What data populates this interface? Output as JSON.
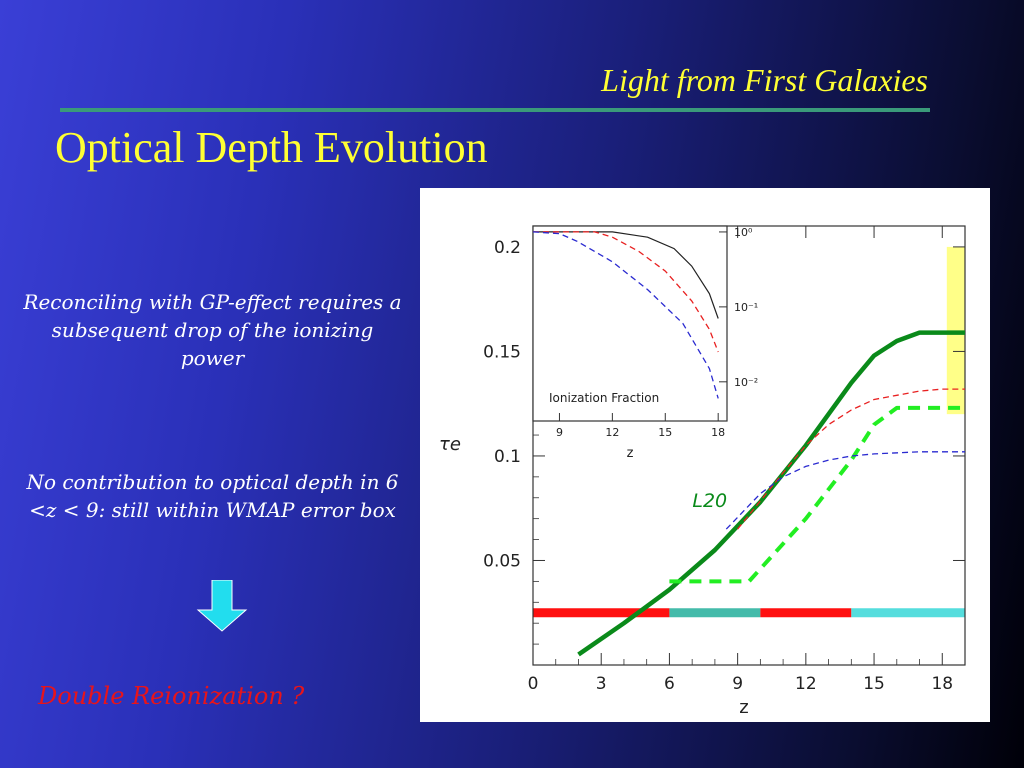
{
  "slide": {
    "header": "Light from First Galaxies",
    "title": "Optical Depth Evolution",
    "note1": "Reconciling with  GP-effect requires a subsequent drop of the ionizing power",
    "note2": "No contribution to  optical depth  in  6 <z < 9: still  within WMAP  error box",
    "conclusion": "Double Reionization ?",
    "colors": {
      "title": "#ffff33",
      "conclusion": "#e8141a",
      "arrow": "#22ddee"
    }
  },
  "chart_data": [
    {
      "type": "line",
      "xlabel": "z",
      "ylabel": "τe",
      "xlim": [
        0,
        19
      ],
      "ylim": [
        0.0,
        0.21
      ],
      "x_ticks": [
        0,
        3,
        6,
        9,
        12,
        15,
        18
      ],
      "y_ticks": [
        0.05,
        0.1,
        0.15,
        0.2
      ],
      "y_tick_labels": [
        "0.05",
        "0.1",
        "0.15",
        "0.2"
      ],
      "annotation": "L20",
      "series": [
        {
          "color": "#0a8a1a",
          "style": "solid-thick",
          "points": [
            [
              2,
              0.005
            ],
            [
              4,
              0.02
            ],
            [
              6,
              0.036
            ],
            [
              8,
              0.055
            ],
            [
              10,
              0.078
            ],
            [
              12,
              0.105
            ],
            [
              14,
              0.135
            ],
            [
              15,
              0.148
            ],
            [
              16,
              0.155
            ],
            [
              17,
              0.159
            ],
            [
              19,
              0.159
            ]
          ]
        },
        {
          "color": "#22ee22",
          "style": "dashed-thick",
          "points": [
            [
              6,
              0.04
            ],
            [
              9.5,
              0.04
            ],
            [
              12,
              0.07
            ],
            [
              14,
              0.098
            ],
            [
              15,
              0.115
            ],
            [
              16,
              0.123
            ],
            [
              19,
              0.123
            ]
          ]
        },
        {
          "color": "#e82020",
          "style": "dashed",
          "points": [
            [
              9,
              0.065
            ],
            [
              11,
              0.092
            ],
            [
              12,
              0.105
            ],
            [
              13,
              0.115
            ],
            [
              14,
              0.122
            ],
            [
              15,
              0.127
            ],
            [
              16,
              0.129
            ],
            [
              17,
              0.131
            ],
            [
              18,
              0.132
            ],
            [
              19,
              0.132
            ]
          ]
        },
        {
          "color": "#2a2ad0",
          "style": "dashed",
          "points": [
            [
              8.5,
              0.065
            ],
            [
              10,
              0.082
            ],
            [
              11,
              0.09
            ],
            [
              12,
              0.095
            ],
            [
              13,
              0.098
            ],
            [
              14,
              0.1
            ],
            [
              15,
              0.101
            ],
            [
              17,
              0.102
            ],
            [
              19,
              0.102
            ]
          ]
        }
      ],
      "wmap_band": {
        "x": [
          18.2,
          19
        ],
        "y": [
          0.12,
          0.2
        ],
        "color": "#ffff88"
      },
      "band_line": {
        "y": 0.025,
        "segments": [
          {
            "x": [
              0,
              6
            ],
            "color": "#ff1010"
          },
          {
            "x": [
              6,
              10
            ],
            "color": "#44bbaa"
          },
          {
            "x": [
              10,
              14
            ],
            "color": "#ff1010"
          },
          {
            "x": [
              14,
              19
            ],
            "color": "#55dddd"
          }
        ]
      }
    },
    {
      "type": "line",
      "title": "Ionization Fraction",
      "xlim": [
        7.5,
        18.5
      ],
      "x_ticks": [
        9,
        12,
        15,
        18
      ],
      "xlabel": "z",
      "y_scale": "log",
      "ylim": [
        0.003,
        1.2
      ],
      "y_ticks": [
        1,
        0.1,
        0.01
      ],
      "y_tick_labels": [
        "10⁰",
        "10⁻¹",
        "10⁻²"
      ],
      "series": [
        {
          "color": "#222222",
          "style": "solid",
          "points": [
            [
              7.5,
              1
            ],
            [
              12,
              1
            ],
            [
              14,
              0.85
            ],
            [
              15.5,
              0.6
            ],
            [
              16.5,
              0.35
            ],
            [
              17.5,
              0.15
            ],
            [
              18,
              0.07
            ]
          ]
        },
        {
          "color": "#e82020",
          "style": "dashed",
          "points": [
            [
              7.5,
              1
            ],
            [
              11,
              1
            ],
            [
              12,
              0.85
            ],
            [
              13.5,
              0.55
            ],
            [
              15,
              0.3
            ],
            [
              16.5,
              0.12
            ],
            [
              17.5,
              0.05
            ],
            [
              18,
              0.025
            ]
          ]
        },
        {
          "color": "#2a2ad0",
          "style": "dashed",
          "points": [
            [
              7.5,
              1
            ],
            [
              9,
              0.95
            ],
            [
              10,
              0.75
            ],
            [
              12,
              0.4
            ],
            [
              14,
              0.17
            ],
            [
              16,
              0.06
            ],
            [
              17.5,
              0.015
            ],
            [
              18,
              0.006
            ]
          ]
        }
      ]
    }
  ]
}
